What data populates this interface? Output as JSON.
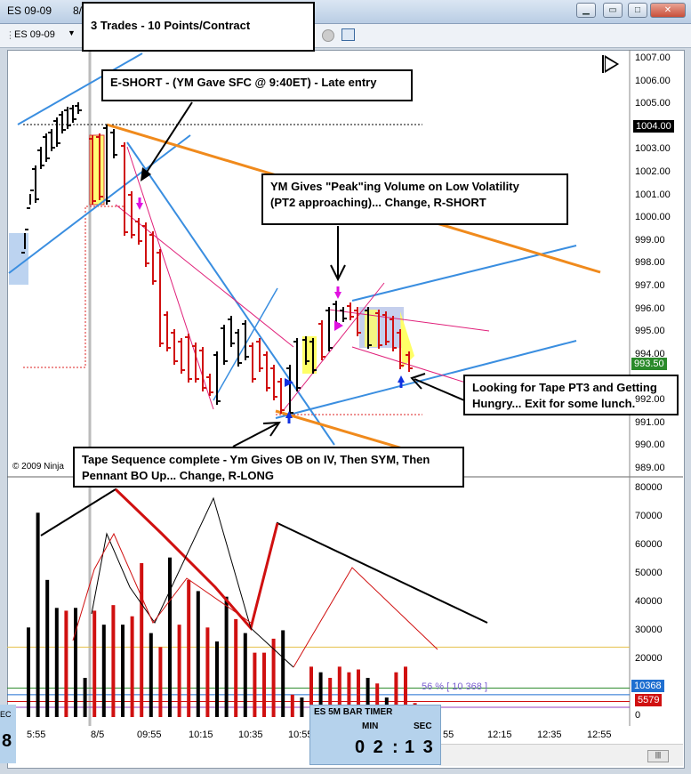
{
  "window": {
    "title_visible": "ES 09-09",
    "title_extra": "8/",
    "minimize_icon": "minimize-icon",
    "maximize_icon": "maximize-icon",
    "close_icon": "close-icon"
  },
  "toolbar": {
    "instrument": "ES 09-09"
  },
  "callouts": {
    "trades": "3 Trades - 10 Points/Contract",
    "eshort": "E-SHORT - (YM Gave SFC @ 9:40ET) - Late entry",
    "ym_peak_line1": "YM Gives \"Peak\"ing Volume on Low Volatility",
    "ym_peak_line2": "(PT2 approaching)... Change, R-SHORT",
    "tape_pt3_line1": "Looking for Tape PT3 and Getting",
    "tape_pt3_line2": "Hungry... Exit for  some lunch.",
    "tape_seq_line1": "Tape Sequence complete - Ym Gives OB on IV, Then SYM, Then",
    "tape_seq_line2": "Pennant BO Up... Change, R-LONG"
  },
  "copyright": "© 2009 Ninja",
  "price_axis": [
    "1007.00",
    "1006.00",
    "1005.00",
    "1004.00",
    "1003.00",
    "1002.00",
    "1001.00",
    "1000.00",
    "999.00",
    "998.00",
    "997.00",
    "996.00",
    "995.00",
    "994.00",
    "993.50",
    "992.00",
    "991.00",
    "990.00",
    "989.00"
  ],
  "price_tags": {
    "top": "1004.00",
    "last": "993.50"
  },
  "volume_axis": [
    "80000",
    "70000",
    "60000",
    "50000",
    "40000",
    "30000",
    "20000",
    "10000",
    "0"
  ],
  "volume_tags": {
    "blue": "10368",
    "red": "5579"
  },
  "volume_pct": "56 % [ 10 368 ]",
  "time_axis": [
    "5:55",
    "8/5",
    "09:55",
    "10:15",
    "10:35",
    "10:55",
    "55",
    "12:15",
    "12:35",
    "12:55"
  ],
  "timer": {
    "title": "ES 5M BAR TIMER",
    "min_label": "MIN",
    "sec_label": "SEC",
    "min_value": "0 2",
    "sep": ":",
    "sec_value": "1 3"
  },
  "left_panel": {
    "label": "EC",
    "value": "8"
  },
  "colors": {
    "bull_bar": "#000000",
    "bear_bar": "#d01010",
    "trend_blue": "#3a8ee0",
    "trend_orange": "#f08a1c",
    "trend_magenta": "#e0207a",
    "highlight_yellow": "#ffff66"
  },
  "chart_data": {
    "type": "table",
    "price_panel": {
      "ylim": [
        988.5,
        1007.5
      ],
      "last_price": 993.5
    },
    "volume_panel": {
      "ylim": [
        0,
        82000
      ],
      "volumes": [
        32000,
        73000,
        49000,
        39000,
        38000,
        39000,
        14000,
        38000,
        33000,
        40000,
        33000,
        36000,
        55000,
        30000,
        25000,
        57000,
        33000,
        49000,
        45000,
        32000,
        27000,
        43000,
        35000,
        30000,
        23000,
        23000,
        28000,
        31000,
        8000,
        7000,
        18000,
        16000,
        14000,
        18000,
        16000,
        17000,
        14000,
        12000,
        7000,
        16000,
        18000,
        5000
      ],
      "bar_colors": [
        "k",
        "k",
        "k",
        "k",
        "r",
        "k",
        "k",
        "r",
        "k",
        "r",
        "k",
        "r",
        "r",
        "k",
        "r",
        "k",
        "r",
        "r",
        "k",
        "r",
        "k",
        "k",
        "r",
        "k",
        "r",
        "r",
        "r",
        "k",
        "r",
        "k",
        "r",
        "k",
        "r",
        "r",
        "r",
        "r",
        "k",
        "r",
        "k",
        "r",
        "r",
        "r"
      ]
    }
  }
}
